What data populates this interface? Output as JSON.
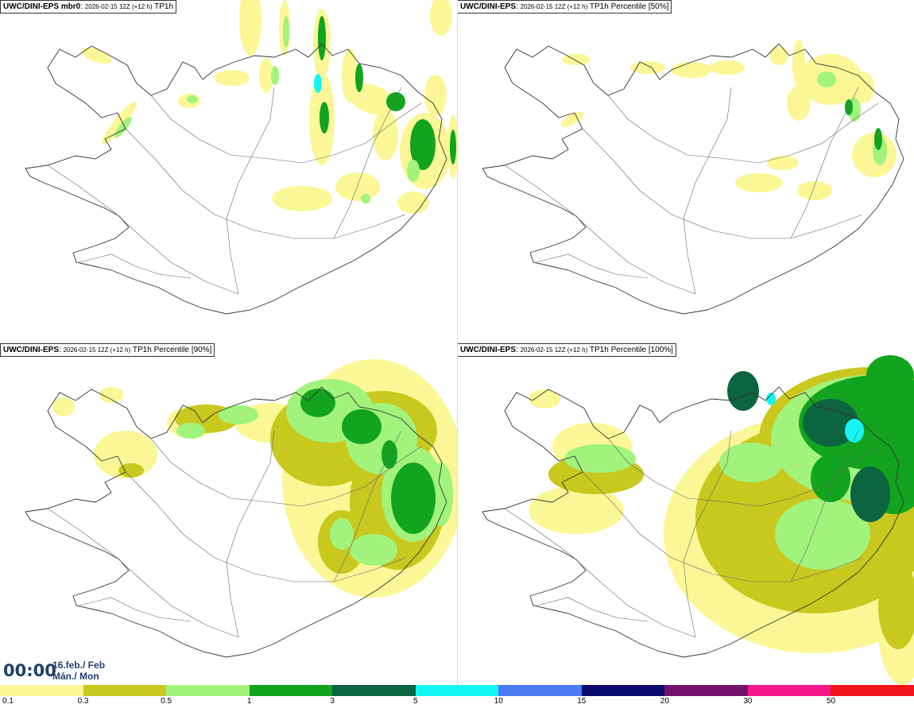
{
  "panels": [
    {
      "model": "UWC/DINI-EPS mbr0",
      "run": "2026-02-15 12Z (+12 h)",
      "field": "TP1h",
      "intensity": 0
    },
    {
      "model": "UWC/DINI-EPS",
      "run": "2026-02-15 12Z (+12 h)",
      "field": "TP1h Percentile [50%]",
      "intensity": 1
    },
    {
      "model": "UWC/DINI-EPS",
      "run": "2026-02-15 12Z (+12 h)",
      "field": "TP1h Percentile [90%]",
      "intensity": 2
    },
    {
      "model": "UWC/DINI-EPS",
      "run": "2026-02-15 12Z (+12 h)",
      "field": "TP1h Percentile [100%]",
      "intensity": 3
    }
  ],
  "valid_time": {
    "time": "00:00",
    "date_line1": "16.feb./ Feb",
    "date_line2": "Mán./ Mon"
  },
  "legend": {
    "colors": [
      "#fbf796",
      "#c8c81e",
      "#a2f37c",
      "#12a41e",
      "#0c6440",
      "#15f5f3",
      "#4a7cf1",
      "#0b0a6e",
      "#72126a",
      "#f4178a",
      "#f21418"
    ],
    "labels": [
      "0.1",
      "0.3",
      "0.5",
      "1",
      "3",
      "5",
      "10",
      "15",
      "20",
      "30",
      "50"
    ]
  }
}
